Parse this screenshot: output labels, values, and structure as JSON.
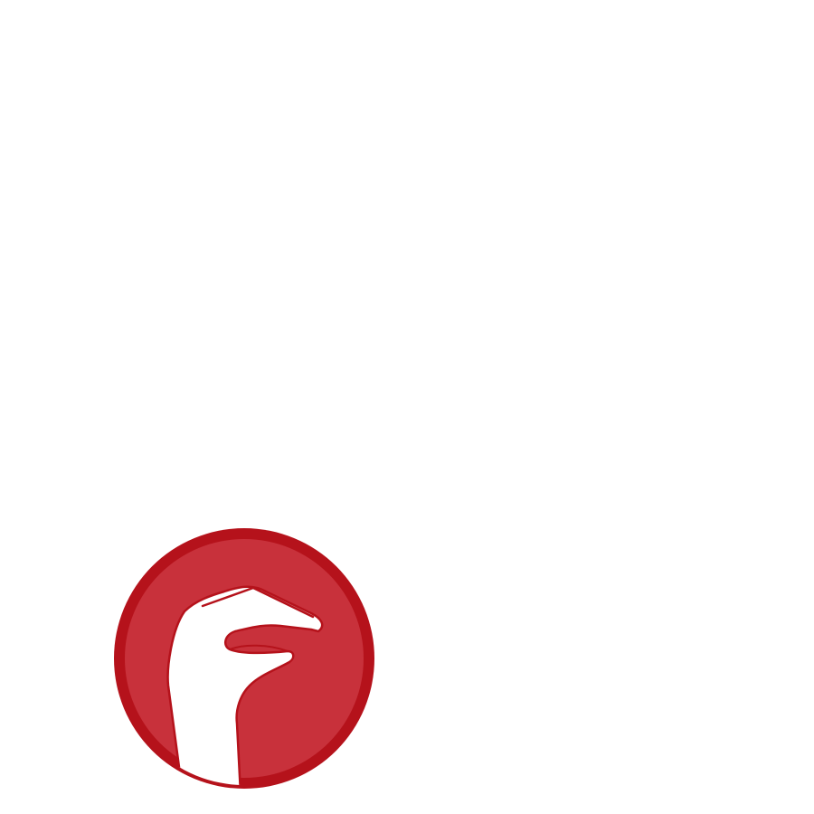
{
  "logo": {
    "icon": "hand-gesture-icon",
    "colors": {
      "background": "#ffffff",
      "ring": "#b5121b",
      "disc": "#c8313b",
      "hand": "#ffffff",
      "hand_outline": "#b5121b"
    }
  }
}
